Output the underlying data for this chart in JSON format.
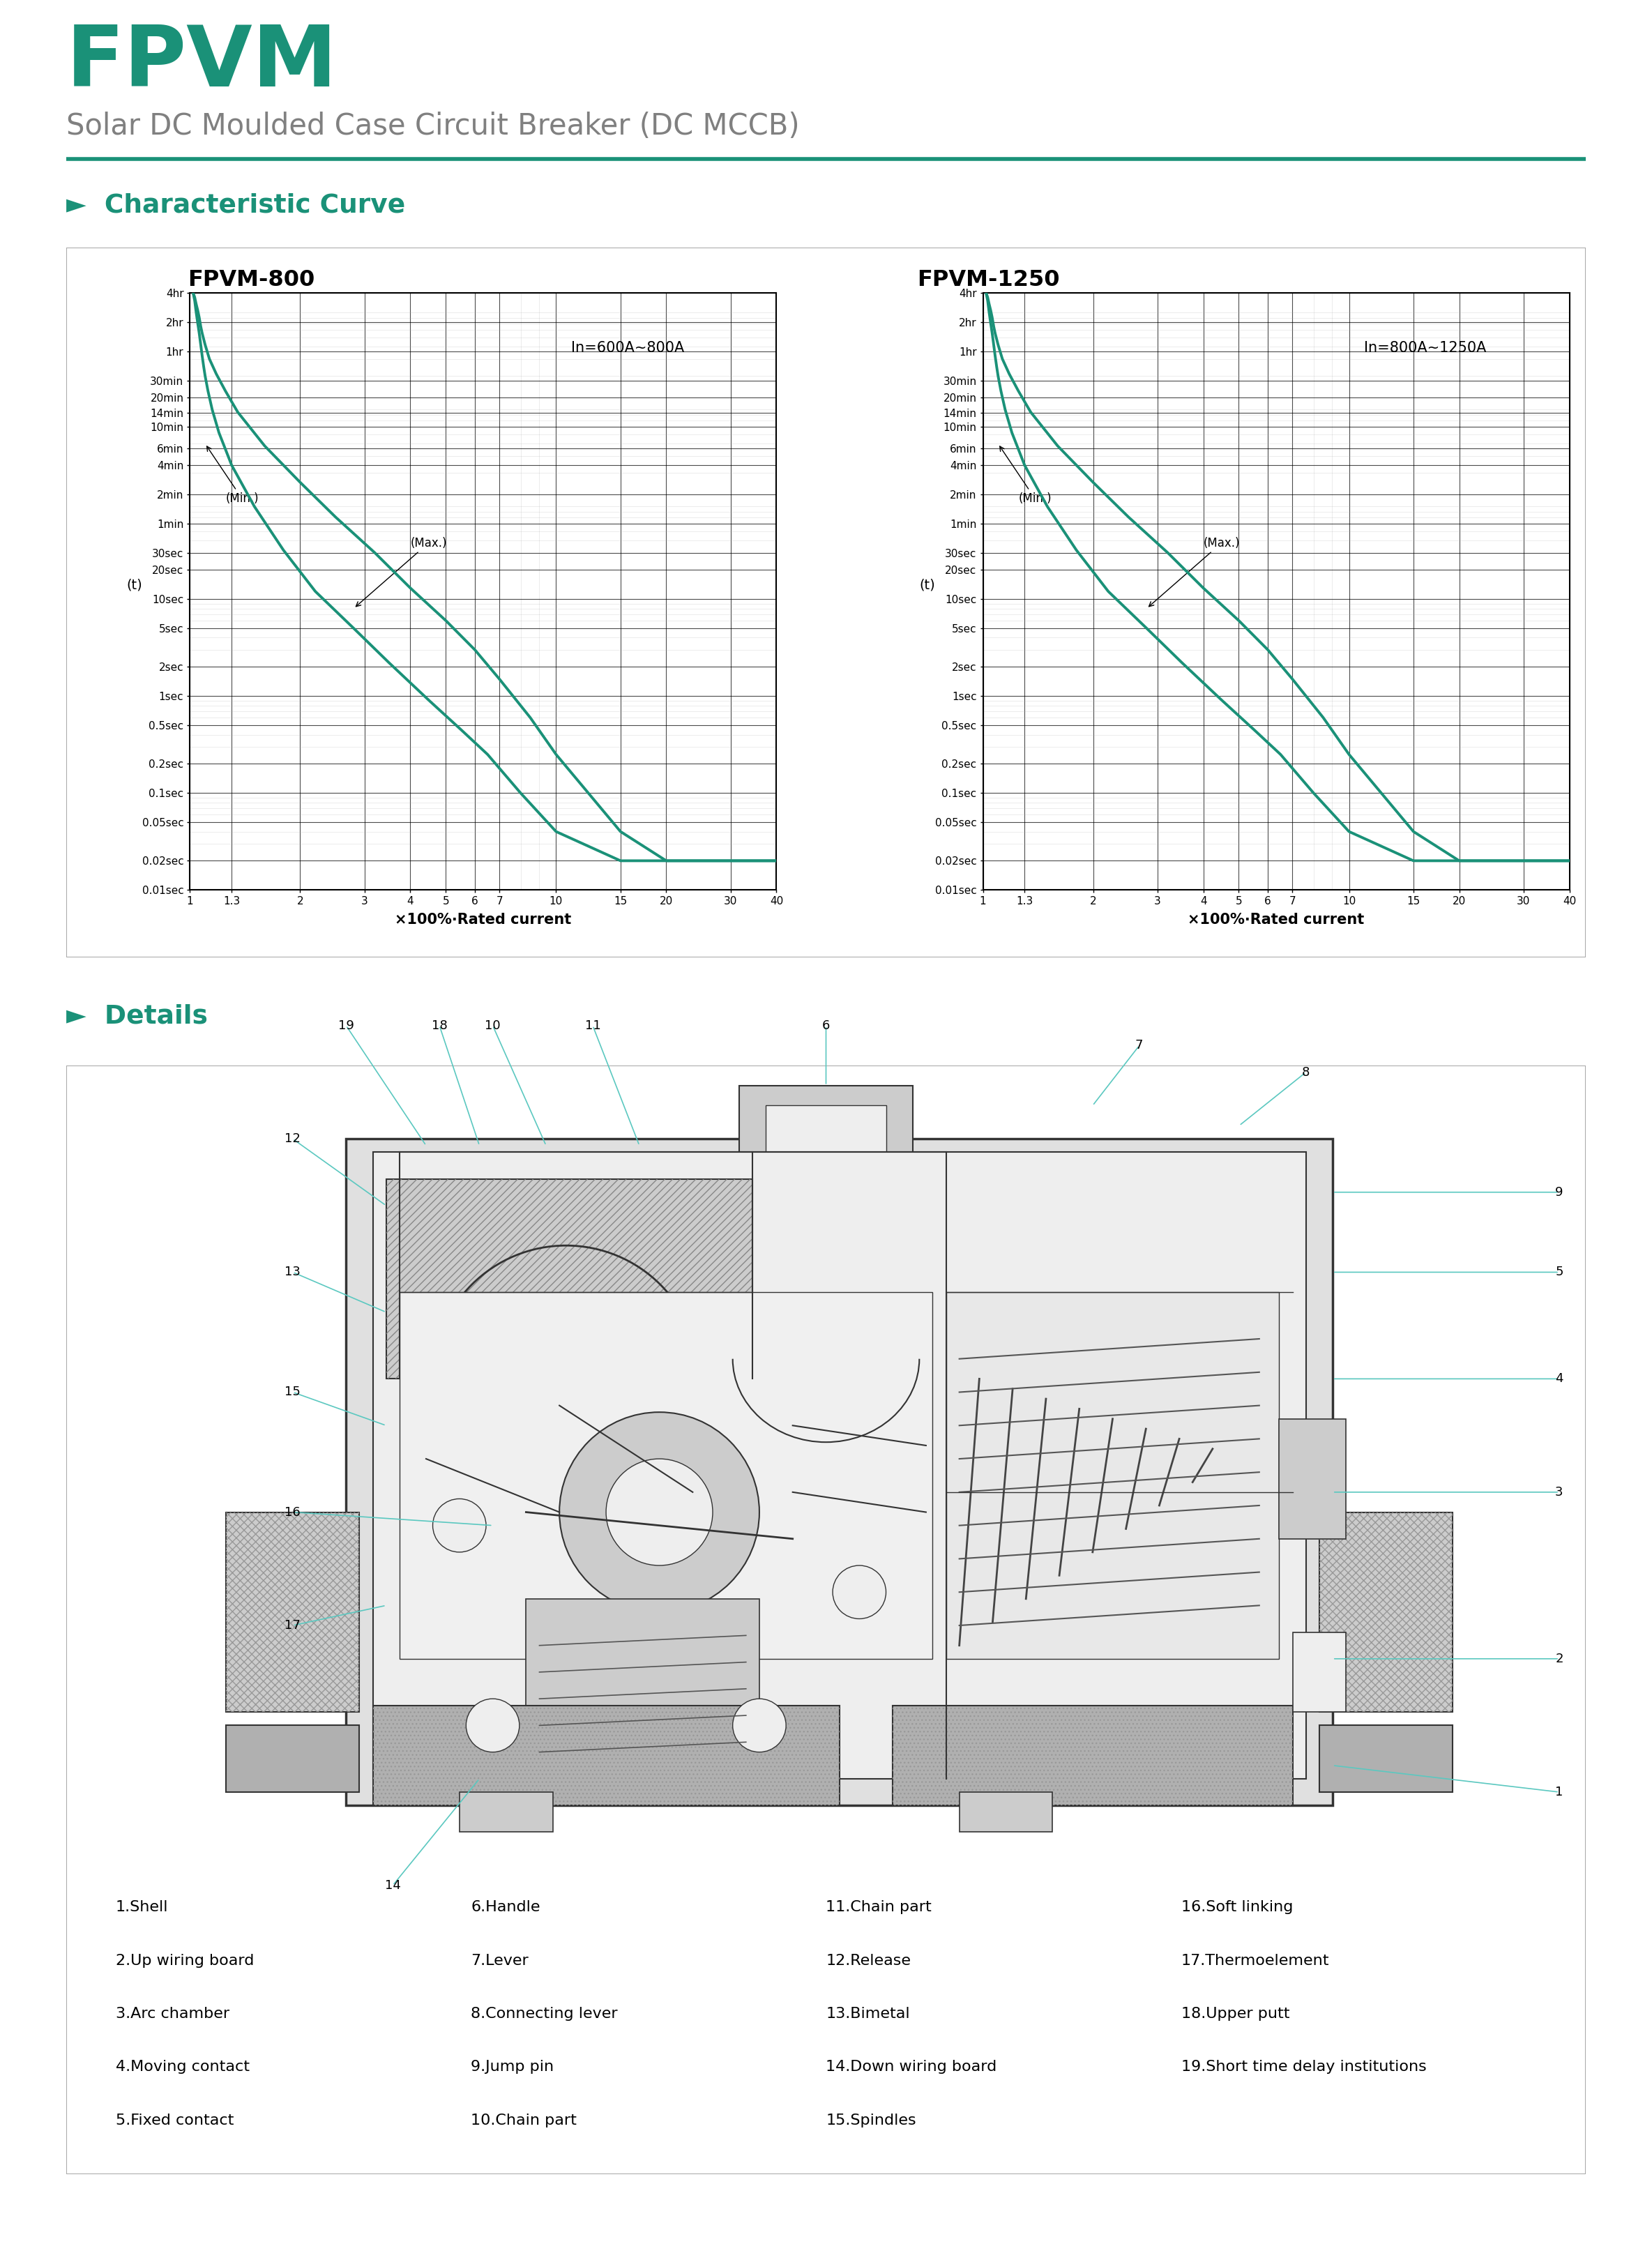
{
  "title_fpvm": "FPVM",
  "subtitle": "Solar DC Moulded Case Circuit Breaker (DC MCCB)",
  "title_color": "#1a9178",
  "subtitle_color": "#808080",
  "section1_title": "►  Characteristic Curve",
  "section2_title": "►  Details",
  "section_title_color": "#1a9178",
  "divider_color": "#1a9178",
  "chart1_title": "FPVM-800",
  "chart2_title": "FPVM-1250",
  "chart1_label": "In=600A~800A",
  "chart2_label": "In=800A~1250A",
  "xlabel": "×100%·Rated current",
  "ylabel": "(t)",
  "teal_color": "#1a9178",
  "callout_color": "#5bc8c0",
  "grid_color": "#000000",
  "bg_color": "#ffffff",
  "ytick_labels": [
    "4hr",
    "2hr",
    "1hr",
    "30min",
    "20min",
    "14min",
    "10min",
    "6min",
    "4min",
    "2min",
    "1min",
    "30sec",
    "20sec",
    "10sec",
    "5sec",
    "2sec",
    "1sec",
    "0.5sec",
    "0.2sec",
    "0.1sec",
    "0.05sec",
    "0.02sec",
    "0.01sec"
  ],
  "ytick_values": [
    14400,
    7200,
    3600,
    1800,
    1200,
    840,
    600,
    360,
    240,
    120,
    60,
    30,
    20,
    10,
    5,
    2,
    1,
    0.5,
    0.2,
    0.1,
    0.05,
    0.02,
    0.01
  ],
  "xtick_labels": [
    "1",
    "1.3",
    "2",
    "3",
    "4",
    "5",
    "6",
    "7",
    "10",
    "15",
    "20",
    "30",
    "40"
  ],
  "xtick_values": [
    1,
    1.3,
    2,
    3,
    4,
    5,
    6,
    7,
    10,
    15,
    20,
    30,
    40
  ],
  "min_curve_x": [
    1.02,
    1.03,
    1.04,
    1.05,
    1.06,
    1.07,
    1.08,
    1.09,
    1.1,
    1.12,
    1.15,
    1.2,
    1.3,
    1.5,
    1.8,
    2.2,
    2.8,
    3.5,
    4.5,
    5.5,
    6.5,
    8.0,
    10.0,
    15.0,
    20.0,
    30.0,
    40.0
  ],
  "min_curve_t": [
    14400,
    12000,
    9000,
    7000,
    5500,
    4200,
    3200,
    2500,
    2000,
    1400,
    900,
    520,
    240,
    90,
    32,
    12,
    5,
    2.2,
    0.9,
    0.45,
    0.25,
    0.1,
    0.04,
    0.02,
    0.02,
    0.02,
    0.02
  ],
  "max_curve_x": [
    1.02,
    1.03,
    1.04,
    1.05,
    1.06,
    1.07,
    1.08,
    1.1,
    1.13,
    1.18,
    1.25,
    1.35,
    1.6,
    2.0,
    2.5,
    3.2,
    4.0,
    5.0,
    6.0,
    7.0,
    8.5,
    10.0,
    15.0,
    20.0,
    30.0,
    40.0
  ],
  "max_curve_t": [
    14400,
    13000,
    11000,
    9500,
    8000,
    6500,
    5500,
    4200,
    3000,
    2100,
    1400,
    850,
    380,
    160,
    70,
    30,
    13,
    6,
    3,
    1.5,
    0.6,
    0.25,
    0.04,
    0.02,
    0.02,
    0.02
  ],
  "details_items": [
    [
      "1.Shell",
      "6.Handle",
      "11.Chain part",
      "16.Soft linking"
    ],
    [
      "2.Up wiring board",
      "7.Lever",
      "12.Release",
      "17.Thermoelement"
    ],
    [
      "3.Arc chamber",
      "8.Connecting lever",
      "13.Bimetal",
      "18.Upper putt"
    ],
    [
      "4.Moving contact",
      "9.Jump pin",
      "14.Down wiring board",
      "19.Short time delay institutions"
    ],
    [
      "5.Fixed contact",
      "10.Chain part",
      "15.Spindles",
      ""
    ]
  ]
}
